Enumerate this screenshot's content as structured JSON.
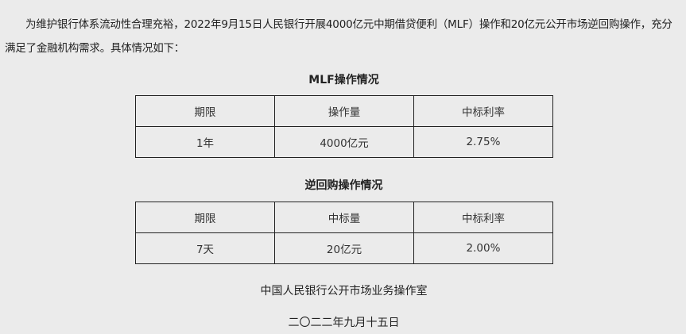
{
  "intro": "为维护银行体系流动性合理充裕，2022年9月15日人民银行开展4000亿元中期借贷便利（MLF）操作和20亿元公开市场逆回购操作，充分满足了金融机构需求。具体情况如下：",
  "mlf": {
    "title": "MLF操作情况",
    "headers": [
      "期限",
      "操作量",
      "中标利率"
    ],
    "rows": [
      [
        "1年",
        "4000亿元",
        "2.75%"
      ]
    ]
  },
  "repo": {
    "title": "逆回购操作情况",
    "headers": [
      "期限",
      "中标量",
      "中标利率"
    ],
    "rows": [
      [
        "7天",
        "20亿元",
        "2.00%"
      ]
    ]
  },
  "footer": {
    "org": "中国人民银行公开市场业务操作室",
    "date": "二〇二二年九月十五日"
  }
}
